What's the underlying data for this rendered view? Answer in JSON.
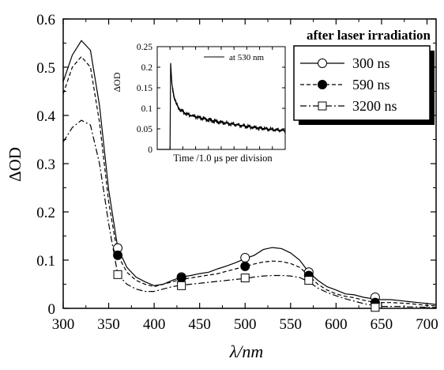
{
  "chart_data": [
    {
      "type": "line",
      "role": "main",
      "xlabel": "λ/nm",
      "ylabel": "ΔOD",
      "xlim": [
        300,
        710
      ],
      "ylim": [
        0,
        0.6
      ],
      "xticks": [
        300,
        350,
        400,
        450,
        500,
        550,
        600,
        650,
        700
      ],
      "yticks": [
        0,
        0.1,
        0.2,
        0.3,
        0.4,
        0.5,
        0.6
      ],
      "xtick_labels": [
        "300",
        "350",
        "400",
        "450",
        "500",
        "550",
        "600",
        "650",
        "700"
      ],
      "ytick_labels": [
        "0",
        "0.1",
        "0.2",
        "0.3",
        "0.4",
        "0.5",
        "0.6"
      ],
      "grid": false,
      "legend": {
        "title": "after laser irradiation",
        "placement": "top-right",
        "entries": [
          "300 ns",
          "590 ns",
          "3200 ns"
        ]
      },
      "series": [
        {
          "name": "300 ns",
          "line_style": "solid",
          "marker": "open-circle",
          "points": [
            [
              300,
              0.47
            ],
            [
              310,
              0.525
            ],
            [
              320,
              0.555
            ],
            [
              330,
              0.535
            ],
            [
              340,
              0.42
            ],
            [
              350,
              0.245
            ],
            [
              360,
              0.125
            ],
            [
              370,
              0.085
            ],
            [
              380,
              0.065
            ],
            [
              390,
              0.055
            ],
            [
              400,
              0.047
            ],
            [
              410,
              0.05
            ],
            [
              420,
              0.058
            ],
            [
              430,
              0.065
            ],
            [
              440,
              0.068
            ],
            [
              450,
              0.072
            ],
            [
              460,
              0.075
            ],
            [
              470,
              0.082
            ],
            [
              480,
              0.088
            ],
            [
              490,
              0.095
            ],
            [
              500,
              0.103
            ],
            [
              510,
              0.11
            ],
            [
              520,
              0.122
            ],
            [
              530,
              0.126
            ],
            [
              540,
              0.124
            ],
            [
              550,
              0.115
            ],
            [
              560,
              0.1
            ],
            [
              570,
              0.075
            ],
            [
              580,
              0.058
            ],
            [
              590,
              0.045
            ],
            [
              600,
              0.038
            ],
            [
              610,
              0.03
            ],
            [
              620,
              0.028
            ],
            [
              630,
              0.023
            ],
            [
              640,
              0.02
            ],
            [
              650,
              0.018
            ],
            [
              660,
              0.018
            ],
            [
              670,
              0.016
            ],
            [
              680,
              0.014
            ],
            [
              690,
              0.012
            ],
            [
              700,
              0.01
            ],
            [
              710,
              0.008
            ]
          ],
          "marker_points": [
            [
              360,
              0.125
            ],
            [
              430,
              0.065
            ],
            [
              500,
              0.105
            ],
            [
              570,
              0.075
            ],
            [
              643,
              0.023
            ]
          ]
        },
        {
          "name": "590 ns",
          "line_style": "dashed",
          "marker": "filled-circle",
          "points": [
            [
              300,
              0.445
            ],
            [
              310,
              0.5
            ],
            [
              320,
              0.522
            ],
            [
              330,
              0.5
            ],
            [
              340,
              0.385
            ],
            [
              350,
              0.22
            ],
            [
              360,
              0.11
            ],
            [
              370,
              0.075
            ],
            [
              380,
              0.058
            ],
            [
              390,
              0.05
            ],
            [
              400,
              0.045
            ],
            [
              410,
              0.05
            ],
            [
              420,
              0.055
            ],
            [
              430,
              0.06
            ],
            [
              440,
              0.063
            ],
            [
              450,
              0.066
            ],
            [
              460,
              0.069
            ],
            [
              470,
              0.072
            ],
            [
              480,
              0.077
            ],
            [
              490,
              0.082
            ],
            [
              500,
              0.087
            ],
            [
              510,
              0.092
            ],
            [
              520,
              0.096
            ],
            [
              530,
              0.098
            ],
            [
              540,
              0.097
            ],
            [
              550,
              0.093
            ],
            [
              560,
              0.085
            ],
            [
              570,
              0.068
            ],
            [
              580,
              0.05
            ],
            [
              590,
              0.038
            ],
            [
              600,
              0.03
            ],
            [
              610,
              0.025
            ],
            [
              620,
              0.022
            ],
            [
              630,
              0.017
            ],
            [
              640,
              0.013
            ],
            [
              650,
              0.012
            ],
            [
              660,
              0.012
            ],
            [
              670,
              0.011
            ],
            [
              680,
              0.01
            ],
            [
              690,
              0.008
            ],
            [
              700,
              0.006
            ],
            [
              710,
              0.005
            ]
          ],
          "marker_points": [
            [
              360,
              0.11
            ],
            [
              430,
              0.063
            ],
            [
              500,
              0.087
            ],
            [
              570,
              0.068
            ],
            [
              643,
              0.012
            ]
          ]
        },
        {
          "name": "3200 ns",
          "line_style": "dash-dot",
          "marker": "open-square",
          "points": [
            [
              300,
              0.345
            ],
            [
              310,
              0.375
            ],
            [
              320,
              0.39
            ],
            [
              330,
              0.38
            ],
            [
              340,
              0.3
            ],
            [
              350,
              0.175
            ],
            [
              360,
              0.07
            ],
            [
              370,
              0.05
            ],
            [
              380,
              0.04
            ],
            [
              390,
              0.035
            ],
            [
              400,
              0.035
            ],
            [
              410,
              0.04
            ],
            [
              420,
              0.045
            ],
            [
              430,
              0.048
            ],
            [
              440,
              0.05
            ],
            [
              450,
              0.052
            ],
            [
              460,
              0.054
            ],
            [
              470,
              0.056
            ],
            [
              480,
              0.058
            ],
            [
              490,
              0.06
            ],
            [
              500,
              0.062
            ],
            [
              510,
              0.065
            ],
            [
              520,
              0.067
            ],
            [
              530,
              0.068
            ],
            [
              540,
              0.068
            ],
            [
              550,
              0.067
            ],
            [
              560,
              0.064
            ],
            [
              570,
              0.055
            ],
            [
              580,
              0.042
            ],
            [
              590,
              0.033
            ],
            [
              600,
              0.026
            ],
            [
              610,
              0.02
            ],
            [
              620,
              0.015
            ],
            [
              630,
              0.01
            ],
            [
              640,
              0.006
            ],
            [
              650,
              0.004
            ],
            [
              660,
              0.004
            ],
            [
              670,
              0.004
            ],
            [
              680,
              0.003
            ],
            [
              690,
              0.003
            ],
            [
              700,
              0.002
            ],
            [
              710,
              0.002
            ]
          ],
          "marker_points": [
            [
              360,
              0.07
            ],
            [
              430,
              0.047
            ],
            [
              500,
              0.063
            ],
            [
              570,
              0.058
            ],
            [
              643,
              0.002
            ]
          ]
        }
      ]
    },
    {
      "type": "line",
      "role": "inset",
      "xlabel": "Time /1.0 μs per division",
      "ylabel": "ΔOD",
      "xlim": [
        0,
        10
      ],
      "ylim": [
        0,
        0.25
      ],
      "yticks": [
        0,
        0.05,
        0.1,
        0.15,
        0.2,
        0.25
      ],
      "ytick_labels": [
        "0",
        "0.05",
        "0.1",
        "0.15",
        "0.2",
        "0.25"
      ],
      "grid": false,
      "legend": {
        "placement": "top-right",
        "entries": [
          "at 530 nm"
        ]
      },
      "series": [
        {
          "name": "at 530 nm",
          "line_style": "solid",
          "points": [
            [
              0,
              0.0
            ],
            [
              1.0,
              0.0
            ],
            [
              1.05,
              0.21
            ],
            [
              1.15,
              0.16
            ],
            [
              1.3,
              0.13
            ],
            [
              1.5,
              0.11
            ],
            [
              1.8,
              0.096
            ],
            [
              2.2,
              0.088
            ],
            [
              2.7,
              0.082
            ],
            [
              3.3,
              0.077
            ],
            [
              4.0,
              0.072
            ],
            [
              5.0,
              0.066
            ],
            [
              6.0,
              0.061
            ],
            [
              7.0,
              0.056
            ],
            [
              8.0,
              0.052
            ],
            [
              9.0,
              0.048
            ],
            [
              10.0,
              0.046
            ]
          ]
        }
      ]
    }
  ]
}
